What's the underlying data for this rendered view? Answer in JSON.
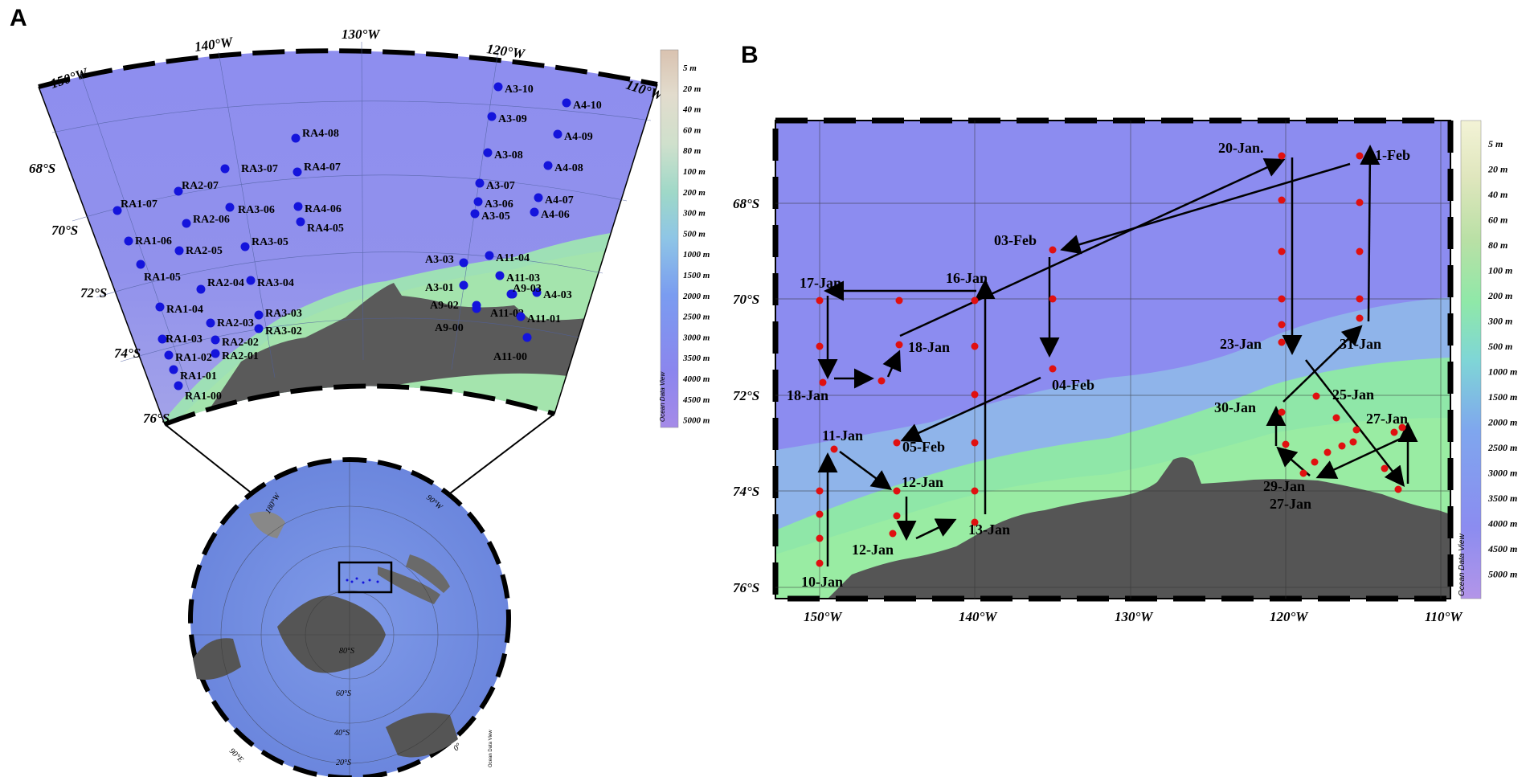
{
  "panel_a": {
    "letter": "A",
    "lon_labels": [
      "150°W",
      "140°W",
      "130°W",
      "120°W",
      "110°W"
    ],
    "lat_labels": [
      "68°S",
      "70°S",
      "72°S",
      "74°S",
      "76°S"
    ],
    "stations": [
      {
        "id": "A3-10"
      },
      {
        "id": "A3-09"
      },
      {
        "id": "A3-08"
      },
      {
        "id": "A3-07"
      },
      {
        "id": "A3-06"
      },
      {
        "id": "A3-05"
      },
      {
        "id": "A4-10"
      },
      {
        "id": "A4-09"
      },
      {
        "id": "A4-08"
      },
      {
        "id": "A4-07"
      },
      {
        "id": "A4-06"
      },
      {
        "id": "A4-03"
      },
      {
        "id": "A11-04"
      },
      {
        "id": "A11-03"
      },
      {
        "id": "A11-02"
      },
      {
        "id": "A11-01"
      },
      {
        "id": "A11-00"
      },
      {
        "id": "A3-03"
      },
      {
        "id": "A3-01"
      },
      {
        "id": "A9-02"
      },
      {
        "id": "A9-03"
      },
      {
        "id": "A9-00"
      },
      {
        "id": "RA4-08"
      },
      {
        "id": "RA4-07"
      },
      {
        "id": "RA4-06"
      },
      {
        "id": "RA4-05"
      },
      {
        "id": "RA3-07"
      },
      {
        "id": "RA3-06"
      },
      {
        "id": "RA3-05"
      },
      {
        "id": "RA3-04"
      },
      {
        "id": "RA3-03"
      },
      {
        "id": "RA3-02"
      },
      {
        "id": "RA2-07"
      },
      {
        "id": "RA2-06"
      },
      {
        "id": "RA2-05"
      },
      {
        "id": "RA2-04"
      },
      {
        "id": "RA2-03"
      },
      {
        "id": "RA2-02"
      },
      {
        "id": "RA2-01"
      },
      {
        "id": "RA1-07"
      },
      {
        "id": "RA1-06"
      },
      {
        "id": "RA1-05"
      },
      {
        "id": "RA1-04"
      },
      {
        "id": "RA1-03"
      },
      {
        "id": "RA1-02"
      },
      {
        "id": "RA1-01"
      },
      {
        "id": "RA1-00"
      }
    ],
    "depth_legend": [
      "5 m",
      "20 m",
      "40 m",
      "60 m",
      "80 m",
      "100 m",
      "200 m",
      "300 m",
      "500 m",
      "1000 m",
      "1500 m",
      "2000 m",
      "2500 m",
      "3000 m",
      "3500 m",
      "4000 m",
      "4500 m",
      "5000 m"
    ],
    "odv_label": "Ocean Data View",
    "globe_labels": {
      "lon_180": "180°W",
      "lon_90w": "90°W",
      "lat_80": "80°S",
      "lat_60": "60°S",
      "lat_40": "40°S",
      "lat_20": "20°S",
      "lon_90e": "90°E",
      "lon_0": "0°",
      "odv": "Ocean Data View"
    }
  },
  "panel_b": {
    "letter": "B",
    "lon_labels": [
      "150°W",
      "140°W",
      "130°W",
      "120°W",
      "110°W"
    ],
    "lat_labels": [
      "68°S",
      "70°S",
      "72°S",
      "74°S",
      "76°S"
    ],
    "date_labels": [
      "20-Jan.",
      "01-Feb",
      "03-Feb",
      "16-Jan",
      "17-Jan",
      "18-Jan",
      "18-Jan",
      "04-Feb",
      "23-Jan",
      "31-Jan",
      "25-Jan",
      "30-Jan",
      "27-Jan",
      "11-Jan",
      "05-Feb",
      "12-Jan",
      "13-Jan",
      "12-Jan",
      "10-Jan",
      "29-Jan",
      "27-Jan"
    ],
    "depth_legend": [
      "5 m",
      "20 m",
      "40 m",
      "60 m",
      "80 m",
      "100 m",
      "200 m",
      "300 m",
      "500 m",
      "1000 m",
      "1500 m",
      "2000 m",
      "2500 m",
      "3000 m",
      "3500 m",
      "4000 m",
      "4500 m",
      "5000 m"
    ],
    "odv_label": "Ocean Data View"
  },
  "colors": {
    "ocean": "#8c8cf0",
    "shelf": "#9be6b4",
    "land": "#5a5a5a",
    "station_a": "#1414dc",
    "station_b": "#e01010"
  }
}
